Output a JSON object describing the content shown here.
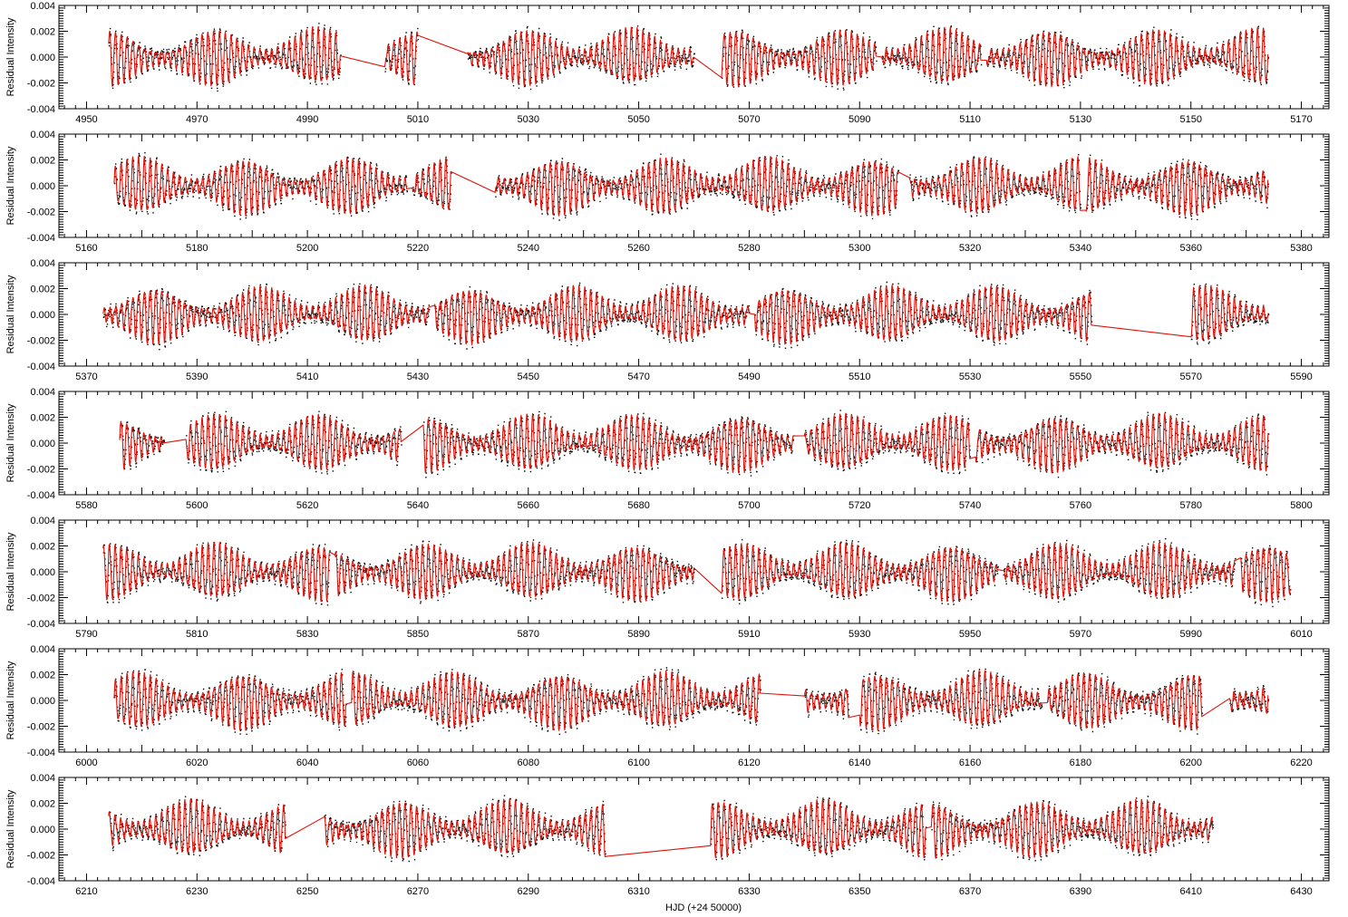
{
  "chart_data": {
    "type": "line",
    "xlabel": "HJD (+24 50000)",
    "ylabel": "Residual Intensity",
    "yticks": [
      "-0.004",
      "-0.002",
      "0.000",
      "0.002",
      "0.004"
    ],
    "ylim": [
      -0.004,
      0.004
    ],
    "series": [
      {
        "name": "",
        "style": "black dots (observed residuals)",
        "color": "#000000"
      },
      {
        "name": "",
        "style": "red line (model fit)",
        "color": "#e0140a"
      }
    ],
    "panels": [
      {
        "xlim": [
          4945,
          5175
        ],
        "xmajor": 20,
        "xminor": 2,
        "xticks": [
          4950,
          4970,
          4990,
          5010,
          5030,
          5050,
          5070,
          5090,
          5110,
          5130,
          5150,
          5170
        ],
        "segments": [
          [
            4954,
            4996
          ],
          [
            5004,
            5010
          ],
          [
            5019,
            5060
          ],
          [
            5065,
            5093
          ],
          [
            5094,
            5112
          ],
          [
            5113,
            5164
          ]
        ],
        "seed": 11
      },
      {
        "xlim": [
          5155,
          5385
        ],
        "xmajor": 20,
        "xminor": 2,
        "xticks": [
          5160,
          5180,
          5200,
          5220,
          5240,
          5260,
          5280,
          5300,
          5320,
          5340,
          5360,
          5380
        ],
        "segments": [
          [
            5165,
            5218
          ],
          [
            5219,
            5226
          ],
          [
            5234,
            5307
          ],
          [
            5309,
            5340
          ],
          [
            5341,
            5374
          ]
        ],
        "seed": 23
      },
      {
        "xlim": [
          5365,
          5595
        ],
        "xmajor": 20,
        "xminor": 2,
        "xticks": [
          5370,
          5390,
          5410,
          5430,
          5450,
          5470,
          5490,
          5510,
          5530,
          5550,
          5570,
          5590
        ],
        "segments": [
          [
            5373,
            5432
          ],
          [
            5433,
            5490
          ],
          [
            5491,
            5552
          ],
          [
            5570,
            5584
          ]
        ],
        "seed": 37
      },
      {
        "xlim": [
          5575,
          5805
        ],
        "xmajor": 20,
        "xminor": 2,
        "xticks": [
          5580,
          5600,
          5620,
          5640,
          5660,
          5680,
          5700,
          5720,
          5740,
          5760,
          5780,
          5800
        ],
        "segments": [
          [
            5586,
            5594
          ],
          [
            5598,
            5637
          ],
          [
            5641,
            5708
          ],
          [
            5710,
            5740
          ],
          [
            5741,
            5794
          ]
        ],
        "seed": 41
      },
      {
        "xlim": [
          5785,
          6015
        ],
        "xmajor": 20,
        "xminor": 2,
        "xticks": [
          5790,
          5810,
          5830,
          5850,
          5870,
          5890,
          5910,
          5930,
          5950,
          5970,
          5990,
          6010
        ],
        "segments": [
          [
            5793,
            5834
          ],
          [
            5835,
            5900
          ],
          [
            5905,
            5955
          ],
          [
            5956,
            5998
          ],
          [
            5999,
            6008
          ]
        ],
        "seed": 53
      },
      {
        "xlim": [
          5995,
          6225
        ],
        "xmajor": 20,
        "xminor": 2,
        "xticks": [
          6000,
          6020,
          6040,
          6060,
          6080,
          6100,
          6120,
          6140,
          6160,
          6180,
          6200,
          6220
        ],
        "segments": [
          [
            6005,
            6047
          ],
          [
            6048,
            6122
          ],
          [
            6130,
            6138
          ],
          [
            6140,
            6173
          ],
          [
            6174,
            6202
          ],
          [
            6207,
            6214
          ]
        ],
        "seed": 67
      },
      {
        "xlim": [
          6205,
          6435
        ],
        "xmajor": 20,
        "xminor": 2,
        "xticks": [
          6210,
          6230,
          6250,
          6270,
          6290,
          6310,
          6330,
          6350,
          6370,
          6390,
          6410,
          6430
        ],
        "segments": [
          [
            6214,
            6246
          ],
          [
            6253,
            6304
          ],
          [
            6323,
            6362
          ],
          [
            6363,
            6414
          ]
        ],
        "seed": 79
      }
    ]
  }
}
